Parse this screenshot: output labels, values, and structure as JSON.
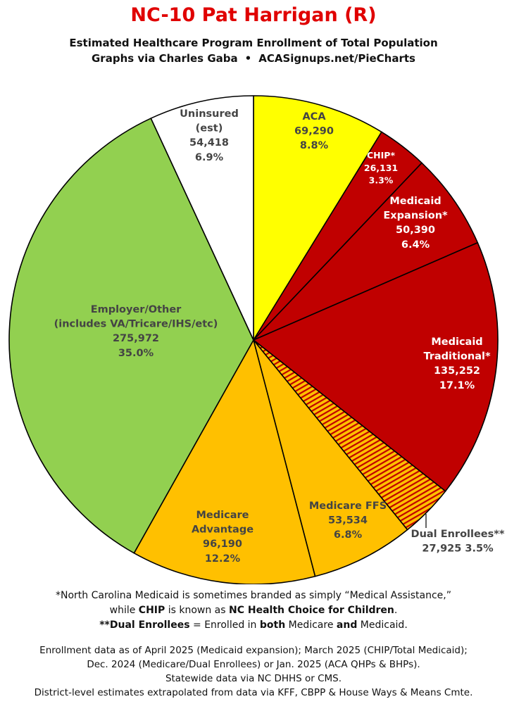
{
  "title": "NC-10 Pat Harrigan (R)",
  "subtitle_line1": "Estimated Healthcare Program Enrollment of Total Population",
  "subtitle_line2_left": "Graphs via Charles Gaba",
  "subtitle_bullet": "•",
  "subtitle_line2_right": "ACASignups.net/PieCharts",
  "colors": {
    "aca": "#ffff00",
    "medicaid": "#c00000",
    "dual_stripe_a": "#c00000",
    "dual_stripe_b": "#ffc000",
    "medicare": "#ffc000",
    "employer": "#92d050",
    "uninsured": "#ffffff",
    "title": "#e00000"
  },
  "chart_data": {
    "type": "pie",
    "start": "12 o'clock, clockwise",
    "slices": [
      {
        "key": "aca",
        "lines": [
          "ACA"
        ],
        "value": 69290,
        "value_text": "69,290",
        "percent": 8.8,
        "percent_text": "8.8%",
        "color": "#ffff00",
        "text_color": "#444444",
        "pattern": "solid"
      },
      {
        "key": "chip",
        "lines": [
          "CHIP*"
        ],
        "value": 26131,
        "value_text": "26,131",
        "percent": 3.3,
        "percent_text": "3.3%",
        "color": "#c00000",
        "text_color": "#ffffff",
        "pattern": "solid"
      },
      {
        "key": "medicaid_expansion",
        "lines": [
          "Medicaid",
          "Expansion*"
        ],
        "value": 50390,
        "value_text": "50,390",
        "percent": 6.4,
        "percent_text": "6.4%",
        "color": "#c00000",
        "text_color": "#ffffff",
        "pattern": "solid"
      },
      {
        "key": "medicaid_traditional",
        "lines": [
          "Medicaid",
          "Traditional*"
        ],
        "value": 135252,
        "value_text": "135,252",
        "percent": 17.1,
        "percent_text": "17.1%",
        "color": "#c00000",
        "text_color": "#ffffff",
        "pattern": "solid"
      },
      {
        "key": "dual_enrollees",
        "lines": [
          "Dual Enrollees**"
        ],
        "value": 27925,
        "value_text": "27,925",
        "percent": 3.5,
        "percent_text": "3.5%",
        "color": "#c00000",
        "text_color": "#444444",
        "pattern": "striped",
        "label_outside": true
      },
      {
        "key": "medicare_ffs",
        "lines": [
          "Medicare FFS"
        ],
        "value": 53534,
        "value_text": "53,534",
        "percent": 6.8,
        "percent_text": "6.8%",
        "color": "#ffc000",
        "text_color": "#444444",
        "pattern": "solid"
      },
      {
        "key": "medicare_advantage",
        "lines": [
          "Medicare",
          "Advantage"
        ],
        "value": 96190,
        "value_text": "96,190",
        "percent": 12.2,
        "percent_text": "12.2%",
        "color": "#ffc000",
        "text_color": "#444444",
        "pattern": "solid"
      },
      {
        "key": "employer_other",
        "lines": [
          "Employer/Other",
          "(includes VA/Tricare/IHS/etc)"
        ],
        "value": 275972,
        "value_text": "275,972",
        "percent": 35.0,
        "percent_text": "35.0%",
        "color": "#92d050",
        "text_color": "#444444",
        "pattern": "solid"
      },
      {
        "key": "uninsured",
        "lines": [
          "Uninsured",
          "(est)"
        ],
        "value": 54418,
        "value_text": "54,418",
        "percent": 6.9,
        "percent_text": "6.9%",
        "color": "#ffffff",
        "text_color": "#444444",
        "pattern": "solid"
      }
    ]
  },
  "footnotes": {
    "line1": "*North Carolina Medicaid is sometimes branded as simply “Medical Assistance,”",
    "line2_pre": "while ",
    "line2_b1": "CHIP",
    "line2_mid": " is known as ",
    "line2_b2": "NC Health Choice for Children",
    "line2_post": ".",
    "line3_b1": "**Dual Enrollees",
    "line3_mid": " = Enrolled in ",
    "line3_b2": "both",
    "line3_mid2": " Medicare ",
    "line3_b3": "and",
    "line3_post": " Medicaid."
  },
  "sources": {
    "line1": "Enrollment data as of April 2025 (Medicaid expansion); March 2025 (CHIP/Total Medicaid);",
    "line2": "Dec. 2024 (Medicare/Dual Enrollees) or Jan. 2025 (ACA QHPs & BHPs).",
    "line3": "Statewide data via NC DHHS or CMS.",
    "line4": "District-level estimates extrapolated from data via KFF, CBPP & House Ways & Means Cmte."
  }
}
